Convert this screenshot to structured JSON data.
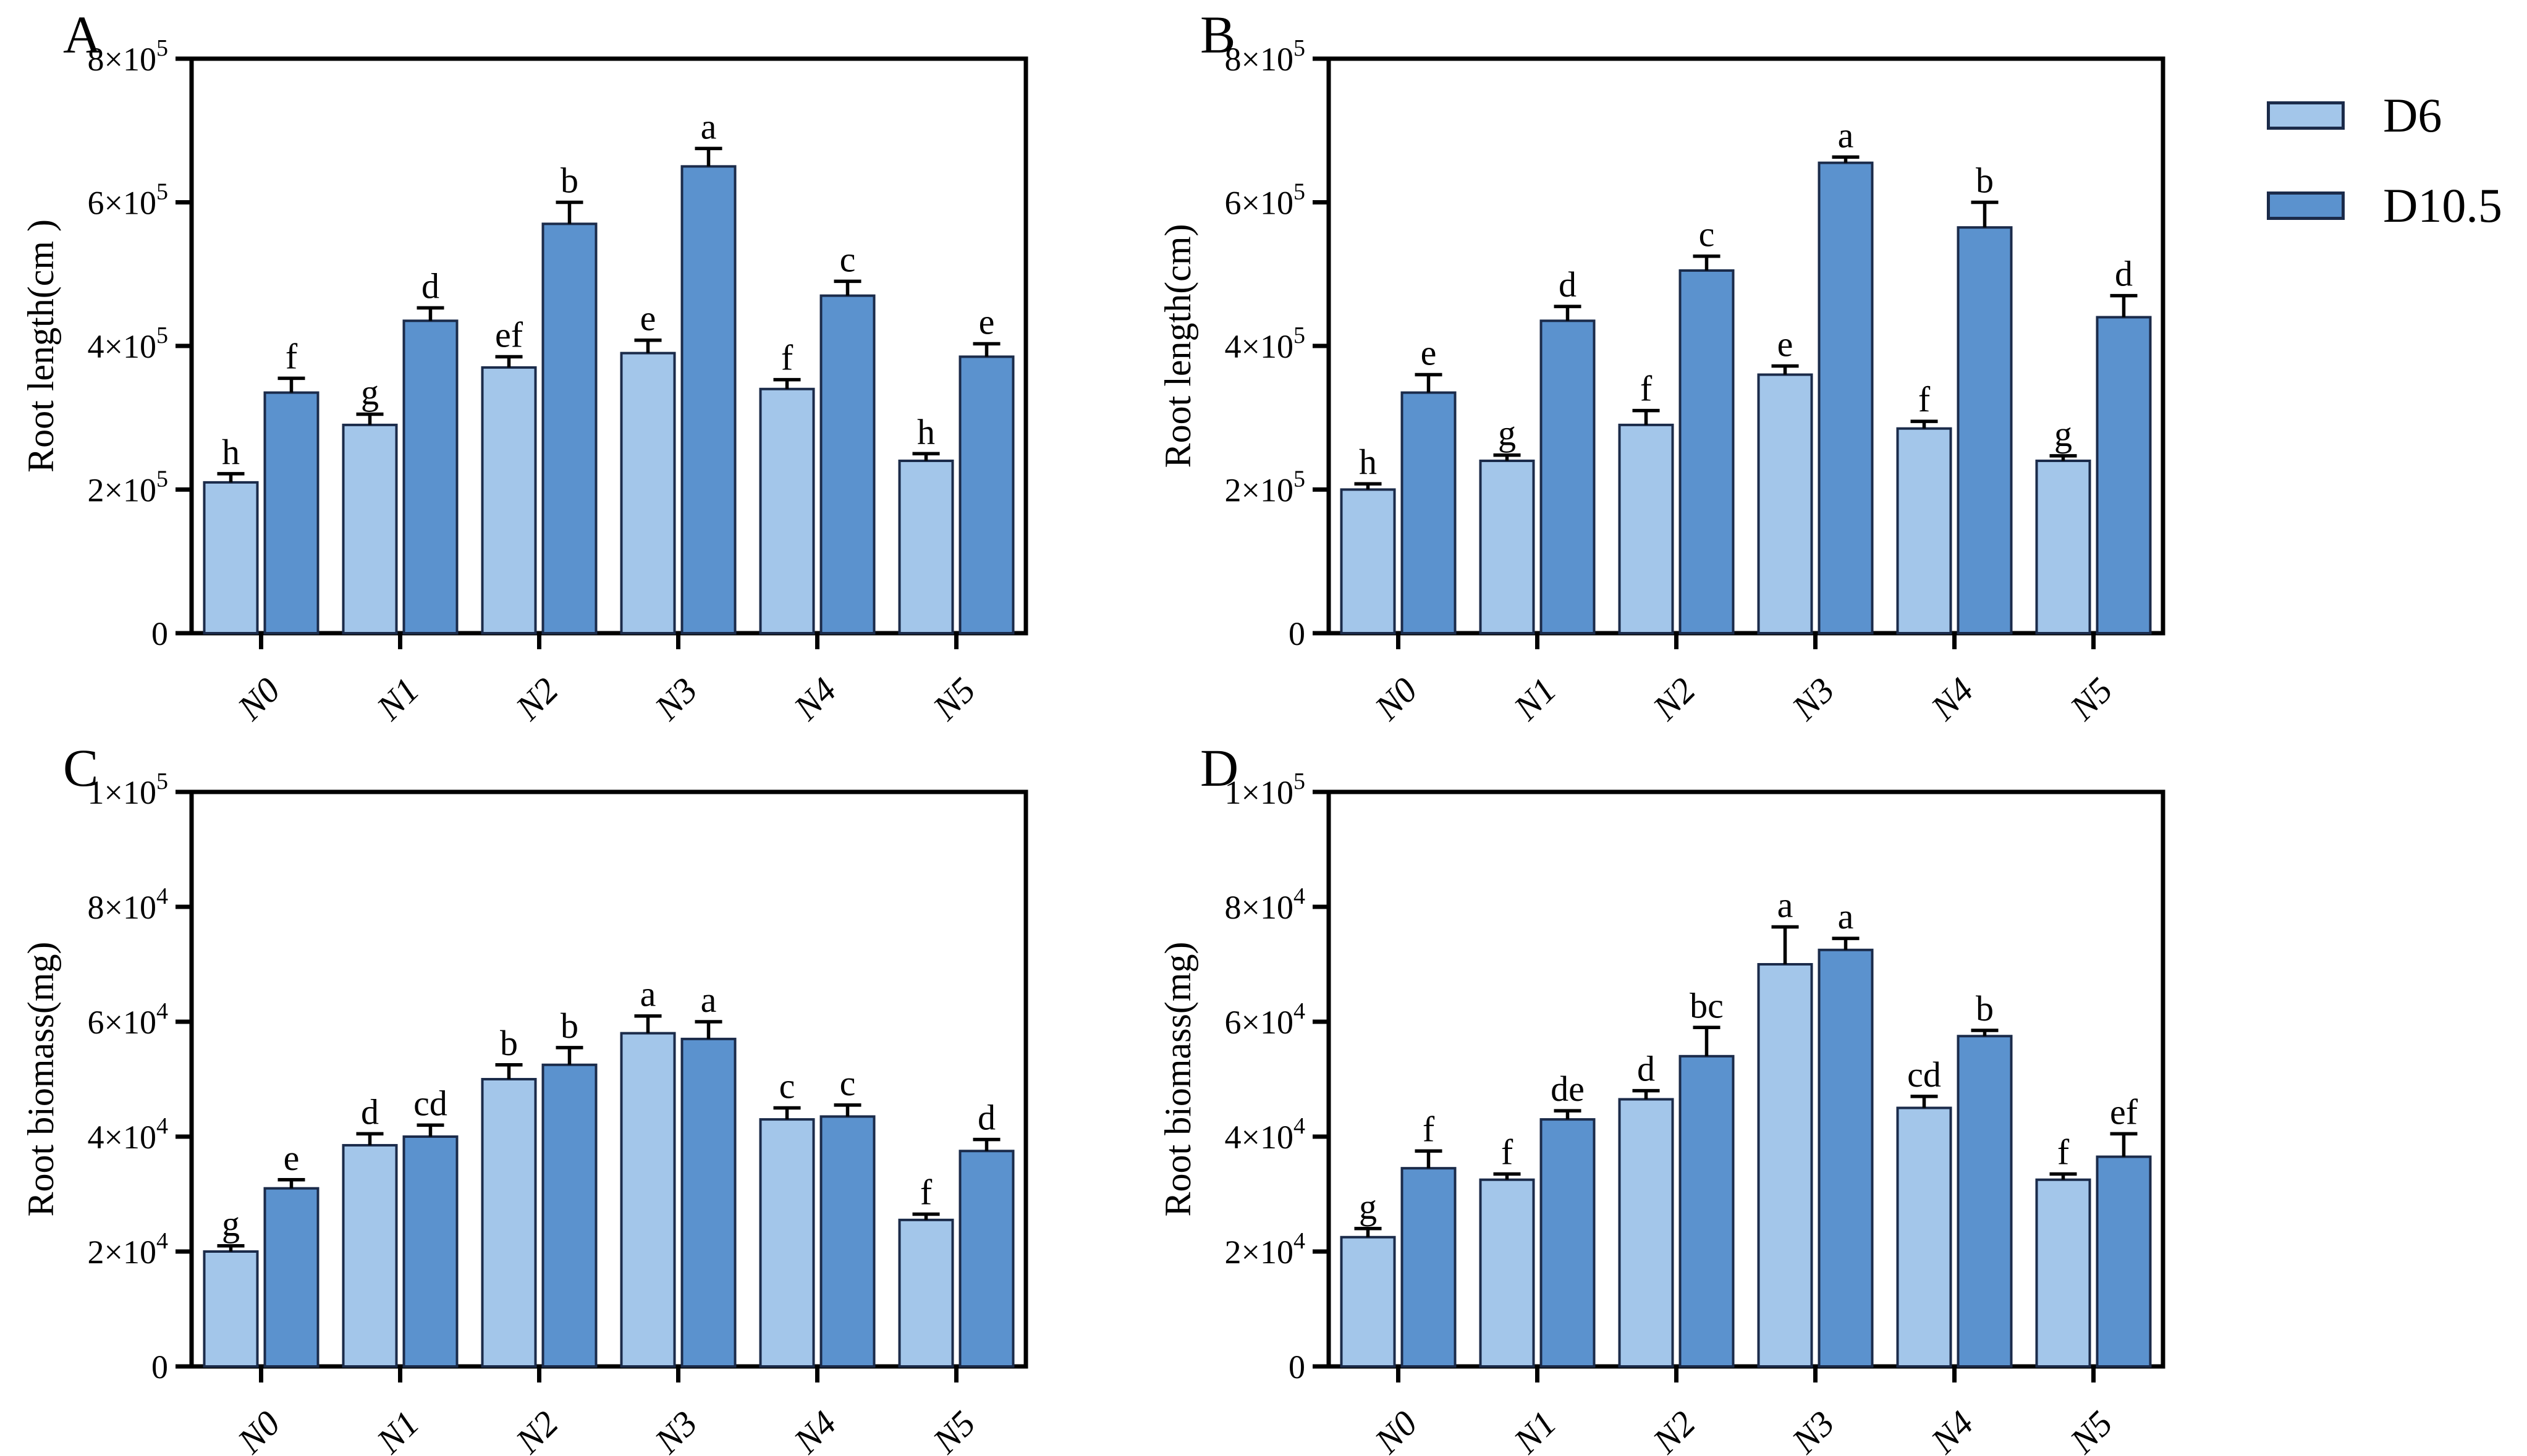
{
  "figure": {
    "background": "#FFFFFF",
    "styles": {
      "bar_edge_color": "#1B2B4A",
      "axis_color": "#000000",
      "error_bar_color": "#000000",
      "text_color": "#000000"
    }
  },
  "legend": {
    "position": "right-top",
    "items": [
      {
        "label": "D6",
        "color": "#A3C6EA"
      },
      {
        "label": "D10.5",
        "color": "#5B92CE"
      }
    ]
  },
  "chart_data": [
    {
      "panel": "A",
      "type": "bar",
      "ylabel": "Root length(cm )",
      "xlabel": "",
      "ylim": [
        0,
        800000
      ],
      "grid": false,
      "ytick_values": [
        0,
        200000,
        400000,
        600000,
        800000
      ],
      "ytick_labels": [
        {
          "base": "0",
          "exp": ""
        },
        {
          "base": "2×10",
          "exp": "5"
        },
        {
          "base": "4×10",
          "exp": "5"
        },
        {
          "base": "6×10",
          "exp": "5"
        },
        {
          "base": "8×10",
          "exp": "5"
        }
      ],
      "categories": [
        "N0",
        "N1",
        "N2",
        "N3",
        "N4",
        "N5"
      ],
      "series": [
        {
          "name": "D6",
          "color": "#A3C6EA",
          "values": [
            210000,
            290000,
            370000,
            390000,
            340000,
            240000
          ],
          "errors": [
            12000,
            15000,
            15000,
            18000,
            13000,
            10000
          ],
          "letters": [
            "h",
            "g",
            "ef",
            "e",
            "f",
            "h"
          ]
        },
        {
          "name": "D10.5",
          "color": "#5B92CE",
          "values": [
            335000,
            435000,
            570000,
            650000,
            470000,
            385000
          ],
          "errors": [
            20000,
            18000,
            30000,
            25000,
            20000,
            18000
          ],
          "letters": [
            "f",
            "d",
            "b",
            "a",
            "c",
            "e"
          ]
        }
      ]
    },
    {
      "panel": "B",
      "type": "bar",
      "ylabel": "Root length(cm)",
      "xlabel": "",
      "ylim": [
        0,
        800000
      ],
      "grid": false,
      "ytick_values": [
        0,
        200000,
        400000,
        600000,
        800000
      ],
      "ytick_labels": [
        {
          "base": "0",
          "exp": ""
        },
        {
          "base": "2×10",
          "exp": "5"
        },
        {
          "base": "4×10",
          "exp": "5"
        },
        {
          "base": "6×10",
          "exp": "5"
        },
        {
          "base": "8×10",
          "exp": "5"
        }
      ],
      "categories": [
        "N0",
        "N1",
        "N2",
        "N3",
        "N4",
        "N5"
      ],
      "series": [
        {
          "name": "D6",
          "color": "#A3C6EA",
          "values": [
            200000,
            240000,
            290000,
            360000,
            285000,
            240000
          ],
          "errors": [
            8000,
            8000,
            20000,
            12000,
            10000,
            7000
          ],
          "letters": [
            "h",
            "g",
            "f",
            "e",
            "f",
            "g"
          ]
        },
        {
          "name": "D10.5",
          "color": "#5B92CE",
          "values": [
            335000,
            435000,
            505000,
            655000,
            565000,
            440000
          ],
          "errors": [
            25000,
            20000,
            20000,
            8000,
            35000,
            30000
          ],
          "letters": [
            "e",
            "d",
            "c",
            "a",
            "b",
            "d"
          ]
        }
      ]
    },
    {
      "panel": "C",
      "type": "bar",
      "ylabel": "Root biomass(mg)",
      "xlabel": "",
      "ylim": [
        0,
        100000
      ],
      "grid": false,
      "ytick_values": [
        0,
        20000,
        40000,
        60000,
        80000,
        100000
      ],
      "ytick_labels": [
        {
          "base": "0",
          "exp": ""
        },
        {
          "base": "2×10",
          "exp": "4"
        },
        {
          "base": "4×10",
          "exp": "4"
        },
        {
          "base": "6×10",
          "exp": "4"
        },
        {
          "base": "8×10",
          "exp": "4"
        },
        {
          "base": "1×10",
          "exp": "5"
        }
      ],
      "categories": [
        "N0",
        "N1",
        "N2",
        "N3",
        "N4",
        "N5"
      ],
      "series": [
        {
          "name": "D6",
          "color": "#A3C6EA",
          "values": [
            20000,
            38500,
            50000,
            58000,
            43000,
            25500
          ],
          "errors": [
            1000,
            2000,
            2500,
            3000,
            2000,
            1000
          ],
          "letters": [
            "g",
            "d",
            "b",
            "a",
            "c",
            "f"
          ]
        },
        {
          "name": "D10.5",
          "color": "#5B92CE",
          "values": [
            31000,
            40000,
            52500,
            57000,
            43500,
            37500
          ],
          "errors": [
            1500,
            2000,
            3000,
            3000,
            2000,
            2000
          ],
          "letters": [
            "e",
            "cd",
            "b",
            "a",
            "c",
            "d"
          ]
        }
      ]
    },
    {
      "panel": "D",
      "type": "bar",
      "ylabel": "Root biomass(mg)",
      "xlabel": "",
      "ylim": [
        0,
        100000
      ],
      "grid": false,
      "ytick_values": [
        0,
        20000,
        40000,
        60000,
        80000,
        100000
      ],
      "ytick_labels": [
        {
          "base": "0",
          "exp": ""
        },
        {
          "base": "2×10",
          "exp": "4"
        },
        {
          "base": "4×10",
          "exp": "4"
        },
        {
          "base": "6×10",
          "exp": "4"
        },
        {
          "base": "8×10",
          "exp": "4"
        },
        {
          "base": "1×10",
          "exp": "5"
        }
      ],
      "categories": [
        "N0",
        "N1",
        "N2",
        "N3",
        "N4",
        "N5"
      ],
      "series": [
        {
          "name": "D6",
          "color": "#A3C6EA",
          "values": [
            22500,
            32500,
            46500,
            70000,
            45000,
            32500
          ],
          "errors": [
            1500,
            1000,
            1500,
            6500,
            2000,
            1000
          ],
          "letters": [
            "g",
            "f",
            "d",
            "a",
            "cd",
            "f"
          ]
        },
        {
          "name": "D10.5",
          "color": "#5B92CE",
          "values": [
            34500,
            43000,
            54000,
            72500,
            57500,
            36500
          ],
          "errors": [
            3000,
            1500,
            5000,
            2000,
            1000,
            4000
          ],
          "letters": [
            "f",
            "de",
            "bc",
            "a",
            "b",
            "ef"
          ]
        }
      ]
    }
  ]
}
